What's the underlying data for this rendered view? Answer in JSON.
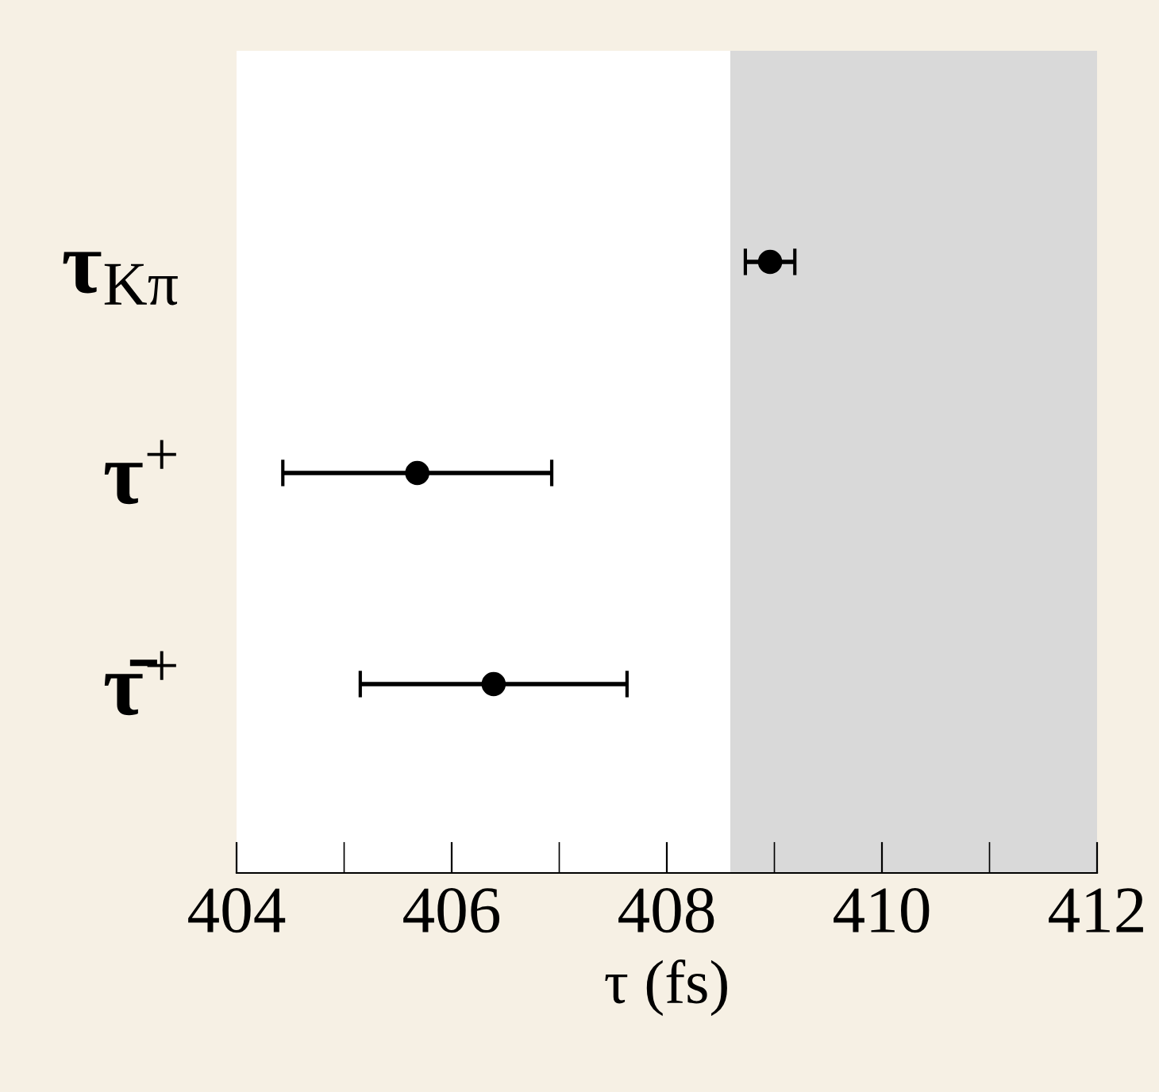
{
  "chart_data": {
    "type": "scatter",
    "orientation": "horizontal",
    "xlabel": "τ (fs)",
    "categories": [
      "τ$_{Kπ}$",
      "τ$^{+}$",
      "τ̄$^{+}$"
    ],
    "values": [
      408.96,
      405.68,
      406.39
    ],
    "errors": [
      0.23,
      1.25,
      1.24
    ],
    "color": "#000000",
    "marker": "circle",
    "xlim": [
      404,
      412
    ],
    "xticks": [
      404,
      406,
      408,
      410,
      412
    ],
    "bands": [
      {
        "axis": "x",
        "from": 408.59,
        "to": 412,
        "color": "#d9d9d9"
      }
    ],
    "grid": false,
    "legend": false
  }
}
